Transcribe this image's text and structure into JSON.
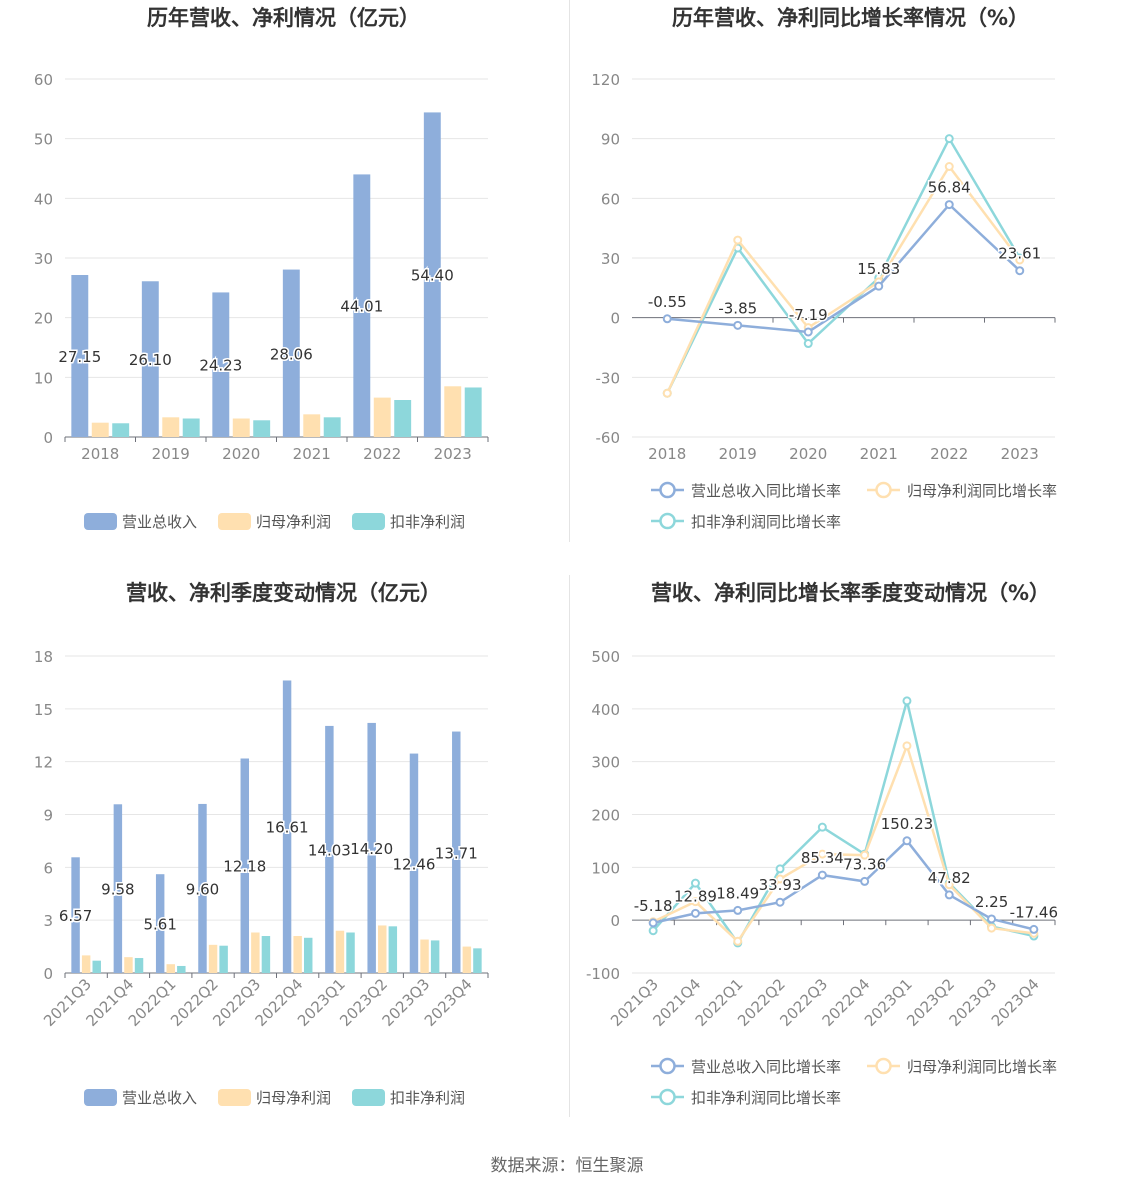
{
  "colors": {
    "revenue": "#8eaedb",
    "netprofit": "#ffe0b0",
    "deducted": "#8dd7db",
    "grid": "#e6e6e6",
    "axis": "#6e7079",
    "text": "#333333"
  },
  "source": "数据来源：恒生聚源",
  "chart_data": [
    {
      "type": "bar",
      "title": "历年营收、净利情况（亿元）",
      "categories": [
        "2018",
        "2019",
        "2020",
        "2021",
        "2022",
        "2023"
      ],
      "series": [
        {
          "name": "营业总收入",
          "values": [
            27.15,
            26.1,
            24.23,
            28.06,
            44.01,
            54.4
          ],
          "labels": [
            "27.15",
            "26.10",
            "24.23",
            "28.06",
            "44.01",
            "54.40"
          ]
        },
        {
          "name": "归母净利润",
          "values": [
            2.4,
            3.3,
            3.1,
            3.8,
            6.6,
            8.5
          ]
        },
        {
          "name": "扣非净利润",
          "values": [
            2.3,
            3.1,
            2.8,
            3.3,
            6.2,
            8.3
          ]
        }
      ],
      "ylim": [
        0,
        60
      ],
      "yticks": [
        "0",
        "10",
        "20",
        "30",
        "40",
        "50",
        "60"
      ],
      "legend": "bottom"
    },
    {
      "type": "line",
      "title": "历年营收、净利同比增长率情况（%）",
      "categories": [
        "2018",
        "2019",
        "2020",
        "2021",
        "2022",
        "2023"
      ],
      "series": [
        {
          "name": "营业总收入同比增长率",
          "values": [
            -0.55,
            -3.85,
            -7.19,
            15.83,
            56.84,
            23.61
          ],
          "labels": [
            "-0.55",
            "-3.85",
            "-7.19",
            "15.83",
            "56.84",
            "23.61"
          ]
        },
        {
          "name": "归母净利润同比增长率",
          "values": [
            -38,
            39,
            -5,
            18,
            76,
            29
          ]
        },
        {
          "name": "扣非净利润同比增长率",
          "values": [
            -38,
            35,
            -13,
            20,
            90,
            30
          ]
        }
      ],
      "ylim": [
        -60,
        120
      ],
      "yticks": [
        "-60",
        "-30",
        "0",
        "30",
        "60",
        "90",
        "120"
      ],
      "legend": "bottom"
    },
    {
      "type": "bar",
      "title": "营收、净利季度变动情况（亿元）",
      "categories": [
        "2021Q3",
        "2021Q4",
        "2022Q1",
        "2022Q2",
        "2022Q3",
        "2022Q4",
        "2023Q1",
        "2023Q2",
        "2023Q3",
        "2023Q4"
      ],
      "series": [
        {
          "name": "营业总收入",
          "values": [
            6.57,
            9.58,
            5.61,
            9.6,
            12.18,
            16.61,
            14.03,
            14.2,
            12.46,
            13.71
          ],
          "labels": [
            "6.57",
            "9.58",
            "5.61",
            "9.60",
            "12.18",
            "16.61",
            "14.03",
            "14.20",
            "12.46",
            "13.71"
          ]
        },
        {
          "name": "归母净利润",
          "values": [
            1.0,
            0.9,
            0.5,
            1.6,
            2.3,
            2.1,
            2.4,
            2.7,
            1.9,
            1.5
          ]
        },
        {
          "name": "扣非净利润",
          "values": [
            0.7,
            0.85,
            0.4,
            1.55,
            2.1,
            2.0,
            2.3,
            2.65,
            1.85,
            1.4
          ]
        }
      ],
      "ylim": [
        0,
        18
      ],
      "yticks": [
        "0",
        "3",
        "6",
        "9",
        "12",
        "15",
        "18"
      ],
      "legend": "bottom"
    },
    {
      "type": "line",
      "title": "营收、净利同比增长率季度变动情况（%）",
      "categories": [
        "2021Q3",
        "2021Q4",
        "2022Q1",
        "2022Q2",
        "2022Q3",
        "2022Q4",
        "2023Q1",
        "2023Q2",
        "2023Q3",
        "2023Q4"
      ],
      "series": [
        {
          "name": "营业总收入同比增长率",
          "values": [
            -5.18,
            12.89,
            18.49,
            33.93,
            85.34,
            73.36,
            150.23,
            47.82,
            2.25,
            -17.46
          ],
          "labels": [
            "-5.18",
            "12.89",
            "18.49",
            "33.93",
            "85.34",
            "73.36",
            "150.23",
            "47.82",
            "2.25",
            "-17.46"
          ]
        },
        {
          "name": "归母净利润同比增长率",
          "values": [
            -3,
            35,
            -40,
            78,
            125,
            123,
            330,
            67,
            -15,
            -25
          ]
        },
        {
          "name": "扣非净利润同比增长率",
          "values": [
            -20,
            70,
            -43,
            97,
            176,
            125,
            415,
            70,
            -12,
            -30
          ]
        }
      ],
      "ylim": [
        -100,
        500
      ],
      "yticks": [
        "-100",
        "0",
        "100",
        "200",
        "300",
        "400",
        "500"
      ],
      "legend": "bottom"
    }
  ]
}
